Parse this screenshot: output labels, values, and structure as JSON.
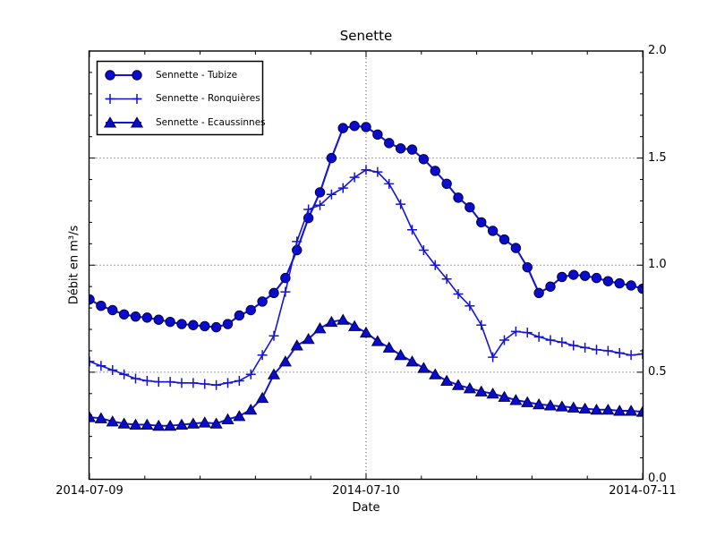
{
  "figure": {
    "title": "Senette",
    "xlabel": "Date",
    "ylabel": "Débit en m³/s"
  },
  "axes": {
    "x_tick_labels": [
      "2014-07-09",
      "2014-07-10",
      "2014-07-11"
    ],
    "y_tick_labels": [
      "0.0",
      "0.5",
      "1.0",
      "1.5",
      "2.0"
    ]
  },
  "legend": {
    "items": [
      {
        "label": "Sennette - Tubize",
        "marker": "circle"
      },
      {
        "label": "Sennette - Ronquières",
        "marker": "plus"
      },
      {
        "label": "Sennette - Ecaussinnes",
        "marker": "triangle"
      }
    ]
  },
  "chart_data": {
    "type": "line",
    "title": "Senette",
    "xlabel": "Date",
    "ylabel": "Débit en m³/s",
    "xlim": [
      "2014-07-09 00:00",
      "2014-07-11 00:00"
    ],
    "ylim": [
      0.0,
      2.0
    ],
    "y_major_ticks": [
      0.0,
      0.5,
      1.0,
      1.5,
      2.0
    ],
    "y_minor_tick_step": 0.1,
    "x_minor_ticks_per_day": 4,
    "grid": {
      "y_values": [
        0.5,
        1.0,
        1.5
      ],
      "x_hours": [
        24
      ],
      "style": "dotted"
    },
    "legend_position": "upper left",
    "x_unit": "hours since 2014-07-09 00:00",
    "x_start": 0,
    "x_step": 1,
    "x_count": 49,
    "series": [
      {
        "name": "Sennette - Tubize",
        "marker": "circle",
        "line_width": 2.1,
        "values": [
          0.84,
          0.81,
          0.79,
          0.77,
          0.76,
          0.755,
          0.745,
          0.735,
          0.725,
          0.72,
          0.715,
          0.71,
          0.725,
          0.765,
          0.79,
          0.83,
          0.87,
          0.94,
          1.07,
          1.22,
          1.34,
          1.5,
          1.64,
          1.65,
          1.645,
          1.61,
          1.57,
          1.545,
          1.54,
          1.495,
          1.44,
          1.38,
          1.315,
          1.27,
          1.2,
          1.16,
          1.12,
          1.08,
          0.99,
          0.87,
          0.9,
          0.945,
          0.955,
          0.95,
          0.94,
          0.925,
          0.915,
          0.905,
          0.89
        ]
      },
      {
        "name": "Sennette - Ronquières",
        "marker": "plus",
        "line_width": 1.6,
        "values": [
          0.55,
          0.53,
          0.51,
          0.49,
          0.47,
          0.46,
          0.455,
          0.455,
          0.45,
          0.45,
          0.445,
          0.44,
          0.45,
          0.46,
          0.49,
          0.58,
          0.67,
          0.875,
          1.11,
          1.26,
          1.28,
          1.33,
          1.36,
          1.41,
          1.445,
          1.435,
          1.38,
          1.285,
          1.165,
          1.07,
          1.0,
          0.935,
          0.865,
          0.81,
          0.72,
          0.57,
          0.65,
          0.69,
          0.685,
          0.665,
          0.65,
          0.64,
          0.625,
          0.615,
          0.605,
          0.6,
          0.59,
          0.58,
          0.585
        ]
      },
      {
        "name": "Sennette - Ecaussinnes",
        "marker": "triangle",
        "line_width": 2.0,
        "values": [
          0.29,
          0.285,
          0.27,
          0.26,
          0.255,
          0.255,
          0.25,
          0.25,
          0.255,
          0.26,
          0.265,
          0.26,
          0.28,
          0.295,
          0.325,
          0.38,
          0.49,
          0.55,
          0.625,
          0.655,
          0.705,
          0.735,
          0.745,
          0.715,
          0.685,
          0.645,
          0.615,
          0.58,
          0.55,
          0.52,
          0.49,
          0.46,
          0.44,
          0.425,
          0.41,
          0.4,
          0.385,
          0.37,
          0.36,
          0.35,
          0.345,
          0.34,
          0.335,
          0.33,
          0.325,
          0.325,
          0.32,
          0.32,
          0.315
        ]
      }
    ],
    "colors": {
      "line": "#1414d2",
      "marker_fill": "#0b0bd0",
      "marker_edge": "#000040",
      "grid": "#444444",
      "frame": "#000000"
    }
  }
}
